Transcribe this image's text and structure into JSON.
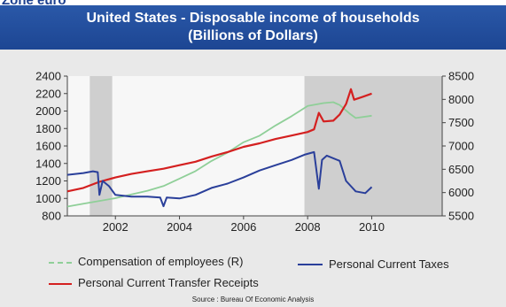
{
  "page": {
    "heading_clip": "Zone euro",
    "title_line1": "United States - Disposable income of households",
    "title_line2": "(Billions of Dollars)",
    "source": "Source : Bureau Of Economic Analysis"
  },
  "colors": {
    "compensation": "#8fcf98",
    "transfer": "#d42020",
    "taxes": "#2a3f9a",
    "recession": "#c8c8c8",
    "title_bg": "#2249a0"
  },
  "chart_data": {
    "type": "line",
    "title": "United States - Disposable income of households",
    "subtitle": "(Billions of Dollars)",
    "x_range": [
      2000.5,
      2012.2
    ],
    "x_ticks": [
      2002,
      2004,
      2006,
      2008,
      2010
    ],
    "y_left": {
      "range": [
        800,
        2400
      ],
      "ticks": [
        800,
        1000,
        1200,
        1400,
        1600,
        1800,
        2000,
        2200,
        2400
      ]
    },
    "y_right": {
      "range": [
        5500,
        8500
      ],
      "ticks": [
        5500,
        6000,
        6500,
        7000,
        7500,
        8000,
        8500
      ]
    },
    "recessions": [
      [
        2001.2,
        2001.9
      ],
      [
        2007.9,
        2012.2
      ]
    ],
    "grid": false,
    "legend_position": "bottom",
    "series": [
      {
        "name": "Compensation of employees (R)",
        "axis": "right",
        "style": "green",
        "points": [
          [
            2000.5,
            5700
          ],
          [
            2001.0,
            5760
          ],
          [
            2001.5,
            5820
          ],
          [
            2002.0,
            5880
          ],
          [
            2002.5,
            5960
          ],
          [
            2003.0,
            6040
          ],
          [
            2003.5,
            6140
          ],
          [
            2004.0,
            6300
          ],
          [
            2004.5,
            6460
          ],
          [
            2005.0,
            6680
          ],
          [
            2005.5,
            6860
          ],
          [
            2006.0,
            7080
          ],
          [
            2006.5,
            7220
          ],
          [
            2007.0,
            7440
          ],
          [
            2007.5,
            7640
          ],
          [
            2008.0,
            7860
          ],
          [
            2008.5,
            7920
          ],
          [
            2008.8,
            7940
          ],
          [
            2009.0,
            7880
          ],
          [
            2009.3,
            7700
          ],
          [
            2009.5,
            7600
          ],
          [
            2010.0,
            7650
          ]
        ]
      },
      {
        "name": "Personal Current Transfer Receipts",
        "axis": "left",
        "style": "red",
        "points": [
          [
            2000.5,
            1080
          ],
          [
            2001.0,
            1120
          ],
          [
            2001.5,
            1190
          ],
          [
            2002.0,
            1240
          ],
          [
            2002.5,
            1280
          ],
          [
            2003.0,
            1310
          ],
          [
            2003.5,
            1340
          ],
          [
            2004.0,
            1380
          ],
          [
            2004.5,
            1420
          ],
          [
            2005.0,
            1480
          ],
          [
            2005.5,
            1530
          ],
          [
            2006.0,
            1590
          ],
          [
            2006.5,
            1630
          ],
          [
            2007.0,
            1680
          ],
          [
            2007.5,
            1720
          ],
          [
            2008.0,
            1760
          ],
          [
            2008.2,
            1790
          ],
          [
            2008.35,
            1980
          ],
          [
            2008.5,
            1880
          ],
          [
            2008.8,
            1890
          ],
          [
            2009.0,
            1960
          ],
          [
            2009.2,
            2080
          ],
          [
            2009.35,
            2250
          ],
          [
            2009.45,
            2130
          ],
          [
            2009.7,
            2160
          ],
          [
            2010.0,
            2200
          ]
        ]
      },
      {
        "name": "Personal Current Taxes",
        "axis": "left",
        "style": "blue",
        "points": [
          [
            2000.5,
            1270
          ],
          [
            2001.0,
            1290
          ],
          [
            2001.3,
            1310
          ],
          [
            2001.45,
            1300
          ],
          [
            2001.5,
            1040
          ],
          [
            2001.6,
            1200
          ],
          [
            2001.8,
            1140
          ],
          [
            2002.0,
            1040
          ],
          [
            2002.5,
            1020
          ],
          [
            2003.0,
            1020
          ],
          [
            2003.4,
            1010
          ],
          [
            2003.5,
            910
          ],
          [
            2003.6,
            1010
          ],
          [
            2004.0,
            1000
          ],
          [
            2004.5,
            1040
          ],
          [
            2005.0,
            1120
          ],
          [
            2005.5,
            1170
          ],
          [
            2006.0,
            1240
          ],
          [
            2006.5,
            1320
          ],
          [
            2007.0,
            1380
          ],
          [
            2007.5,
            1440
          ],
          [
            2007.9,
            1500
          ],
          [
            2008.2,
            1530
          ],
          [
            2008.35,
            1110
          ],
          [
            2008.45,
            1440
          ],
          [
            2008.6,
            1490
          ],
          [
            2009.0,
            1430
          ],
          [
            2009.2,
            1200
          ],
          [
            2009.5,
            1080
          ],
          [
            2009.8,
            1060
          ],
          [
            2010.0,
            1130
          ]
        ]
      }
    ]
  },
  "legend": {
    "compensation": "Compensation of employees (R)",
    "transfer": "Personal Current Transfer Receipts",
    "taxes": "Personal Current Taxes"
  }
}
